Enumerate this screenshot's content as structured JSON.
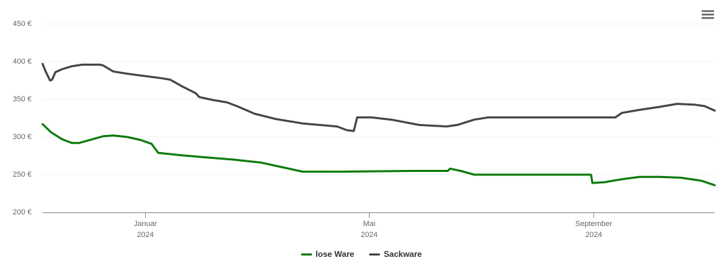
{
  "chart_data": {
    "type": "line",
    "xlim": [
      2023.847,
      2024.847
    ],
    "xticks": [
      {
        "value": 2024.0,
        "label": "Januar\n2024"
      },
      {
        "value": 2024.333,
        "label": "Mai\n2024"
      },
      {
        "value": 2024.667,
        "label": "September\n2024"
      }
    ],
    "ylim": [
      200,
      450
    ],
    "yticks": [
      {
        "value": 200,
        "label": "200 €"
      },
      {
        "value": 250,
        "label": "250 €"
      },
      {
        "value": 300,
        "label": "300 €"
      },
      {
        "value": 350,
        "label": "350 €"
      },
      {
        "value": 400,
        "label": "400 €"
      },
      {
        "value": 450,
        "label": "450 €"
      }
    ],
    "grid": true,
    "series": [
      {
        "name": "lose Ware",
        "color": "#0b7a0b",
        "x": [
          2023.847,
          2023.86,
          2023.876,
          2023.891,
          2023.901,
          2023.917,
          2023.937,
          2023.952,
          2023.973,
          2023.993,
          2024.009,
          2024.019,
          2024.05,
          2024.09,
          2024.131,
          2024.172,
          2024.203,
          2024.234,
          2024.295,
          2024.397,
          2024.45,
          2024.453,
          2024.469,
          2024.489,
          2024.663,
          2024.665,
          2024.683,
          2024.709,
          2024.735,
          2024.765,
          2024.796,
          2024.827,
          2024.847
        ],
        "values": [
          317,
          306,
          297,
          292,
          292,
          296,
          301,
          302,
          300,
          296,
          291,
          279,
          276,
          273,
          270,
          266,
          260,
          254,
          254,
          255,
          255,
          258,
          255,
          250,
          250,
          239,
          240,
          244,
          247,
          247,
          246,
          242,
          236
        ]
      },
      {
        "name": "Sackware",
        "color": "#444444",
        "x": [
          2023.847,
          2023.852,
          2023.858,
          2023.861,
          2023.866,
          2023.876,
          2023.891,
          2023.906,
          2023.932,
          2023.937,
          2023.952,
          2023.973,
          2023.998,
          2024.024,
          2024.037,
          2024.055,
          2024.075,
          2024.08,
          2024.101,
          2024.121,
          2024.136,
          2024.162,
          2024.193,
          2024.234,
          2024.285,
          2024.3,
          2024.31,
          2024.315,
          2024.336,
          2024.366,
          2024.407,
          2024.448,
          2024.464,
          2024.489,
          2024.51,
          2024.551,
          2024.699,
          2024.709,
          2024.735,
          2024.765,
          2024.791,
          2024.816,
          2024.832,
          2024.837,
          2024.847
        ],
        "values": [
          397,
          386,
          375,
          376,
          386,
          390,
          394,
          396,
          396,
          395,
          387,
          384,
          381,
          378,
          376,
          367,
          358,
          353,
          349,
          346,
          341,
          331,
          324,
          318,
          314,
          309,
          308,
          326,
          326,
          323,
          316,
          314,
          316,
          323,
          326,
          326,
          326,
          332,
          336,
          340,
          344,
          343,
          341,
          339,
          335
        ]
      }
    ]
  }
}
